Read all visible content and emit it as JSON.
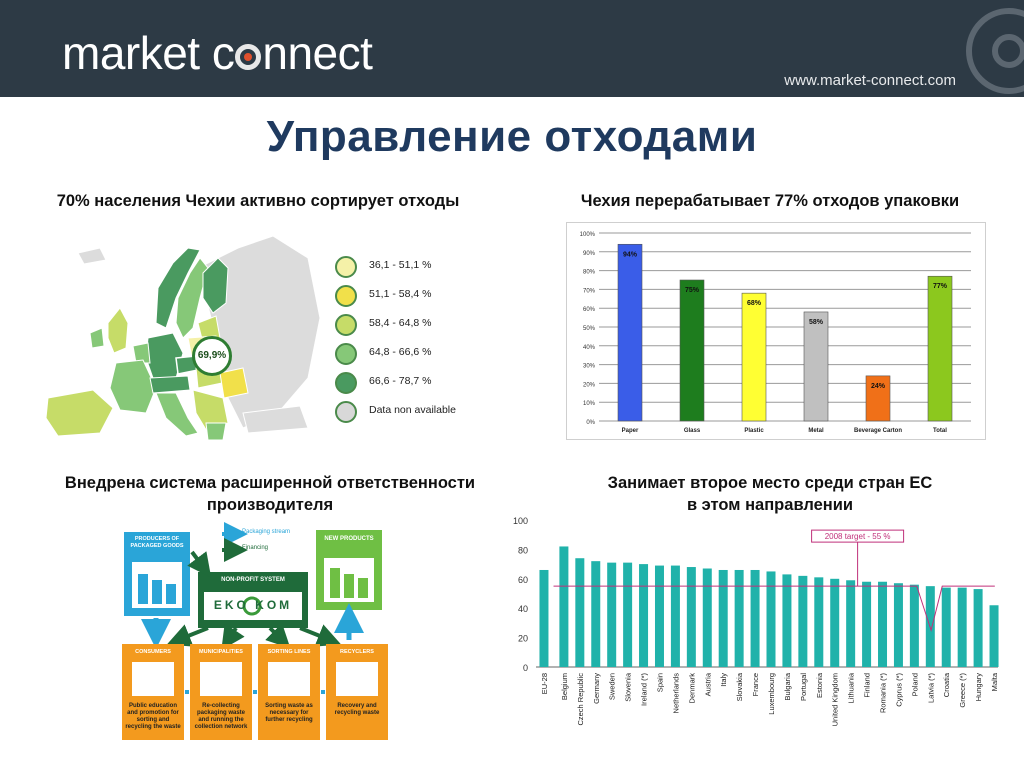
{
  "header": {
    "logo_before": "market c",
    "logo_after": "nnect",
    "url": "www.market-connect.com"
  },
  "main_title": "Управление отходами",
  "sections": {
    "top_left": "70% населения Чехии активно сортирует отходы",
    "top_right": "Чехия перерабатывает 77% отходов упаковки",
    "bottom_left_1": "Внедрена система расширенной ответственности",
    "bottom_left_2": "производителя",
    "bottom_right_1": "Занимает второе место среди стран ЕС",
    "bottom_right_2": "в этом направлении"
  },
  "map": {
    "callout": "69,9%",
    "legend": [
      {
        "label": "36,1 - 51,1 %",
        "color": "#f5f1a8"
      },
      {
        "label": "51,1 - 58,4 %",
        "color": "#f1e04a"
      },
      {
        "label": "58,4 - 64,8 %",
        "color": "#c6dc68"
      },
      {
        "label": "64,8 - 66,6 %",
        "color": "#86c878"
      },
      {
        "label": "66,6 - 78,7 %",
        "color": "#4a9a60"
      },
      {
        "label": "Data non available",
        "color": "#d8d8d8"
      }
    ]
  },
  "epr": {
    "legend_packaging": "Packaging stream",
    "legend_financing": "Financing",
    "producers": "PRODUCERS OF PACKAGED GOODS",
    "nonprofit": "NON-PROFIT SYSTEM",
    "ekokom": "EKO KOM",
    "new_products": "NEW PRODUCTS",
    "steps": [
      {
        "title": "CONSUMERS",
        "desc": "Public education and promotion for sorting and recycling the waste"
      },
      {
        "title": "MUNICIPALITIES",
        "desc": "Re-collecting packaging waste and running the collection network"
      },
      {
        "title": "SORTING LINES",
        "desc": "Sorting waste as necessary for further recycling"
      },
      {
        "title": "RECYCLERS",
        "desc": "Recovery and recycling waste"
      }
    ]
  },
  "chart_data": [
    {
      "type": "bar",
      "categories": [
        "Paper",
        "Glass",
        "Plastic",
        "Metal",
        "Beverage Carton",
        "Total"
      ],
      "values": [
        94,
        75,
        68,
        58,
        24,
        77
      ],
      "value_labels": [
        "94%",
        "75%",
        "68%",
        "58%",
        "24%",
        "77%"
      ],
      "colors": [
        "#3a5de8",
        "#1e7d1e",
        "#ffff33",
        "#c0c0c0",
        "#f07018",
        "#8cc81e"
      ],
      "ylim": [
        0,
        100
      ],
      "yticks": [
        "0%",
        "10%",
        "20%",
        "30%",
        "40%",
        "50%",
        "60%",
        "70%",
        "80%",
        "90%",
        "100%"
      ],
      "grid": true
    },
    {
      "type": "bar",
      "categories": [
        "EU-28",
        "Belgium",
        "Czech Republic",
        "Germany",
        "Sweden",
        "Slovenia",
        "Ireland (*)",
        "Spain",
        "Netherlands",
        "Denmark",
        "Austria",
        "Italy",
        "Slovakia",
        "France",
        "Luxembourg",
        "Bulgaria",
        "Portugal",
        "Estonia",
        "United Kingdom",
        "Lithuania",
        "Finland",
        "Romania (*)",
        "Cyprus (*)",
        "Poland",
        "Latvia (*)",
        "Croatia",
        "Greece (*)",
        "Hungary",
        "Malta"
      ],
      "values": [
        66,
        82,
        74,
        72,
        71,
        71,
        70,
        69,
        69,
        68,
        67,
        66,
        66,
        66,
        65,
        63,
        62,
        61,
        60,
        59,
        58,
        58,
        57,
        56,
        55,
        54,
        54,
        53,
        42
      ],
      "ylim": [
        0,
        100
      ],
      "yticks": [
        "0",
        "20",
        "40",
        "60",
        "80",
        "100"
      ],
      "target_label": "2008 target - 55 %",
      "target_value": 55,
      "color": "#20b2aa"
    }
  ]
}
